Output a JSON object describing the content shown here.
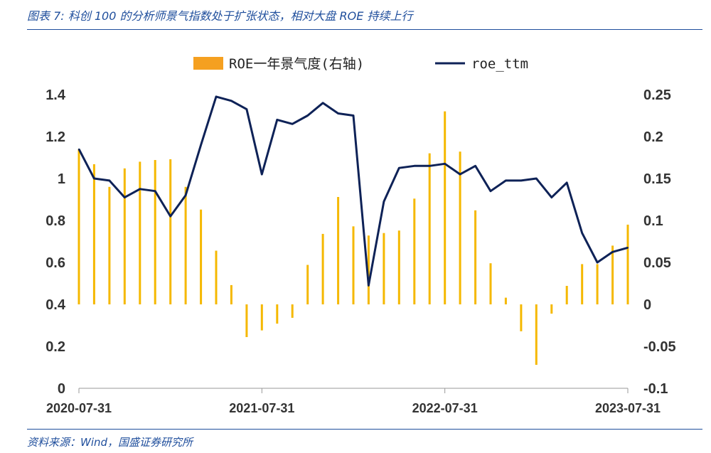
{
  "caption": "图表 7: 科创 100 的分析师景气指数处于扩张状态，相对大盘 ROE 持续上行",
  "source": "资料来源：Wind，国盛证券研究所",
  "colors": {
    "bar": "#f5b800",
    "line": "#0e2257",
    "caption": "#1f4e9c",
    "legend_bar": "#f5a020"
  },
  "chart_data": {
    "type": "bar+line",
    "legend_position": "top-center",
    "grid": false,
    "x_tick_labels": [
      "2020-07-31",
      "2021-07-31",
      "2022-07-31",
      "2023-07-31"
    ],
    "x_tick_index": [
      0,
      12,
      24,
      36
    ],
    "left_axis": {
      "ylim": [
        0,
        1.4
      ],
      "ticks": [
        "0",
        "0.2",
        "0.4",
        "0.6",
        "0.8",
        "1",
        "1.2",
        "1.4"
      ]
    },
    "right_axis": {
      "ylim": [
        -0.1,
        0.25
      ],
      "ticks": [
        "-0.1",
        "-0.05",
        "0",
        "0.05",
        "0.1",
        "0.15",
        "0.2",
        "0.25"
      ]
    },
    "series": [
      {
        "name": "ROE一年景气度(右轴)",
        "type": "bar",
        "axis": "right",
        "values": [
          0.185,
          0.167,
          0.14,
          0.162,
          0.17,
          0.172,
          0.173,
          0.14,
          0.113,
          0.064,
          0.023,
          -0.039,
          -0.031,
          -0.023,
          -0.016,
          0.047,
          0.084,
          0.128,
          0.093,
          0.082,
          0.085,
          0.088,
          0.126,
          0.18,
          0.23,
          0.182,
          0.112,
          0.049,
          0.008,
          -0.032,
          -0.072,
          -0.011,
          0.022,
          0.048,
          0.048,
          0.07,
          0.095
        ]
      },
      {
        "name": "roe_ttm",
        "type": "line",
        "axis": "left",
        "values": [
          1.14,
          1.0,
          0.99,
          0.91,
          0.95,
          0.94,
          0.82,
          0.92,
          1.16,
          1.39,
          1.37,
          1.33,
          1.02,
          1.28,
          1.26,
          1.3,
          1.36,
          1.31,
          1.3,
          0.49,
          0.89,
          1.05,
          1.06,
          1.06,
          1.07,
          1.02,
          1.06,
          0.94,
          0.99,
          0.99,
          1.0,
          0.91,
          0.98,
          0.74,
          0.6,
          0.65,
          0.67
        ]
      }
    ]
  }
}
